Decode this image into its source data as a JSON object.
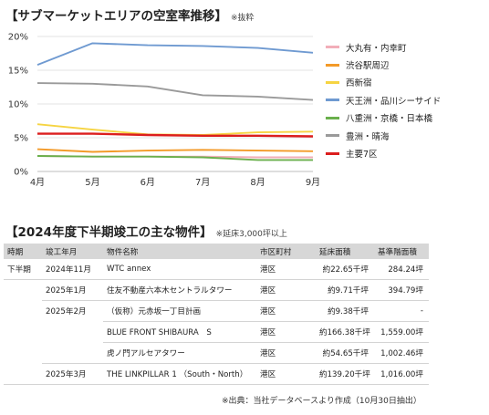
{
  "title": "【サブマーケットエリアの空室率推移】",
  "title_note": "※抜粋",
  "chart_data": {
    "type": "line",
    "categories": [
      "4月",
      "5月",
      "6月",
      "7月",
      "8月",
      "9月"
    ],
    "y_ticks": [
      "0%",
      "5%",
      "10%",
      "15%",
      "20%"
    ],
    "ylim": [
      0,
      20
    ],
    "grid": true,
    "legend_position": "right",
    "series": [
      {
        "name": "大丸有・内幸町",
        "color": "#f2aeb9",
        "values": [
          2.3,
          2.2,
          2.2,
          2.2,
          2.1,
          2.1
        ]
      },
      {
        "name": "渋谷駅周辺",
        "color": "#f39a28",
        "values": [
          3.3,
          2.9,
          3.1,
          3.2,
          3.1,
          3.0
        ]
      },
      {
        "name": "西新宿",
        "color": "#f6d442",
        "values": [
          7.0,
          6.2,
          5.5,
          5.4,
          5.8,
          5.9
        ]
      },
      {
        "name": "天王洲・品川シーサイド",
        "color": "#6f9ad1",
        "values": [
          15.8,
          19.0,
          18.7,
          18.6,
          18.3,
          17.6
        ]
      },
      {
        "name": "八重洲・京橋・日本橋",
        "color": "#6ab04c",
        "values": [
          2.3,
          2.2,
          2.2,
          2.1,
          1.7,
          1.7
        ]
      },
      {
        "name": "豊洲・晴海",
        "color": "#9a9a9a",
        "values": [
          13.1,
          13.0,
          12.6,
          11.3,
          11.1,
          10.6
        ]
      },
      {
        "name": "主要7区",
        "color": "#dc1e1e",
        "values": [
          5.6,
          5.6,
          5.4,
          5.3,
          5.3,
          5.2
        ]
      }
    ]
  },
  "table_title": "【2024年度下半期竣工の主な物件】",
  "table_note": "※延床3,000坪以上",
  "table_headers": [
    "時期",
    "竣工年月",
    "物件名称",
    "市区町村",
    "延床面積",
    "基準階面積"
  ],
  "rows": [
    [
      "下半期",
      "2024年11月",
      "WTC annex",
      "港区",
      "約22.65千坪",
      "284.24坪"
    ],
    [
      "",
      "2025年1月",
      "住友不動産六本木セントラルタワー",
      "港区",
      "約9.71千坪",
      "394.79坪"
    ],
    [
      "",
      "2025年2月",
      "（仮称）元赤坂一丁目計画",
      "港区",
      "約9.38千坪",
      "-"
    ],
    [
      "",
      "",
      "BLUE FRONT SHIBAURA　S",
      "港区",
      "約166.38千坪",
      "1,559.00坪"
    ],
    [
      "",
      "",
      "虎ノ門アルセアタワー",
      "港区",
      "約54.65千坪",
      "1,002.46坪"
    ],
    [
      "",
      "2025年3月",
      "THE LINKPILLAR 1 （South・North）",
      "港区",
      "約139.20千坪",
      "1,016.00坪"
    ]
  ],
  "source": "※出典：当社データベースより作成（10月30日抽出）"
}
